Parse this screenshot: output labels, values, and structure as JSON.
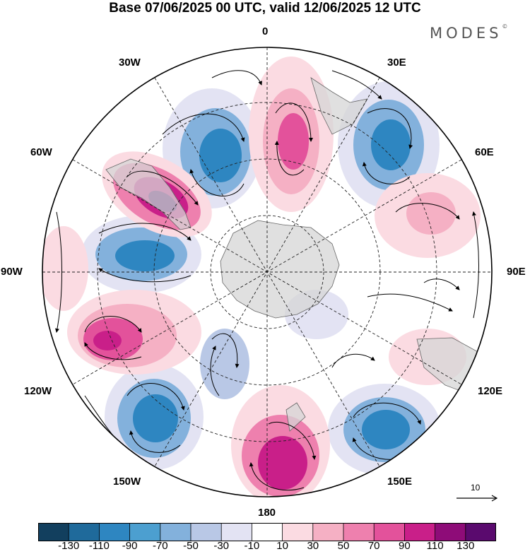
{
  "title": "Base 07/06/2025 00 UTC, valid 12/06/2025 12 UTC",
  "brand": {
    "name": "MODES",
    "mark": "©"
  },
  "longitude_labels": [
    "0",
    "30E",
    "60E",
    "90E",
    "120E",
    "150E",
    "180",
    "150W",
    "120W",
    "90W",
    "60W",
    "30W"
  ],
  "reference_vector": {
    "value": "10"
  },
  "colorbar": {
    "colors": [
      "#123f5e",
      "#1f6a9b",
      "#2e86c1",
      "#4c9fd0",
      "#83b1dc",
      "#b9c8e6",
      "#e3e3f3",
      "#ffffff",
      "#fbdbe2",
      "#f5b0c4",
      "#ee80ae",
      "#e3529b",
      "#c91f89",
      "#8e0c78",
      "#5a0a6e"
    ],
    "tick_labels": [
      "-130",
      "-110",
      "-90",
      "-70",
      "-50",
      "-30",
      "-10",
      "10",
      "30",
      "50",
      "70",
      "90",
      "110",
      "130"
    ]
  }
}
